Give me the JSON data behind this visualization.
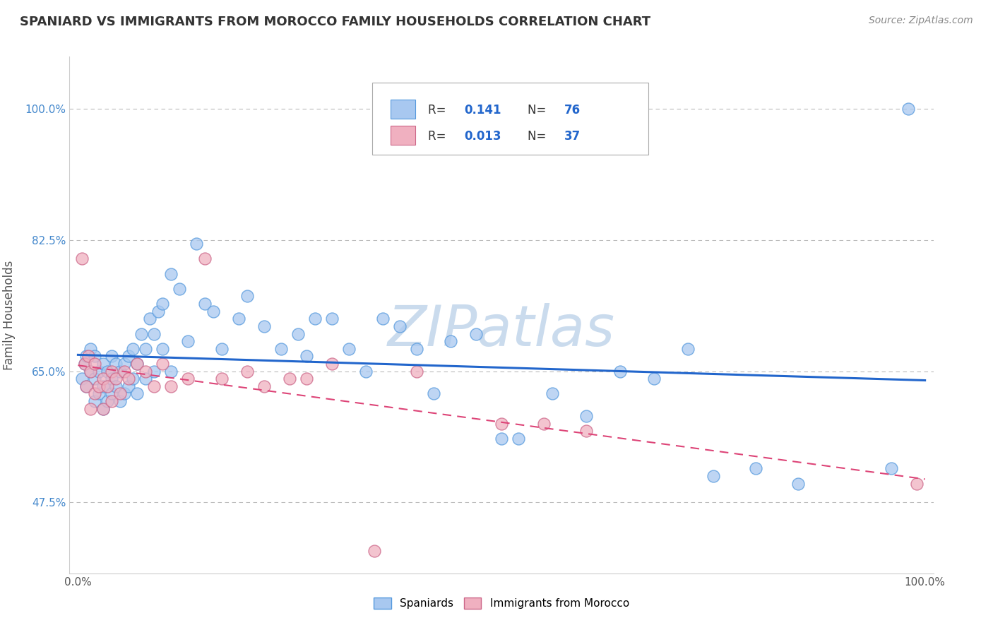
{
  "title": "SPANIARD VS IMMIGRANTS FROM MOROCCO FAMILY HOUSEHOLDS CORRELATION CHART",
  "source": "Source: ZipAtlas.com",
  "ylabel": "Family Households",
  "xlim": [
    -0.01,
    1.01
  ],
  "ylim": [
    0.38,
    1.07
  ],
  "yticks": [
    0.475,
    0.65,
    0.825,
    1.0
  ],
  "ytick_labels": [
    "47.5%",
    "65.0%",
    "82.5%",
    "100.0%"
  ],
  "xtick_labels": [
    "0.0%",
    "100.0%"
  ],
  "color_blue_fill": "#A8C8F0",
  "color_blue_edge": "#5599DD",
  "color_pink_fill": "#F0B0C0",
  "color_pink_edge": "#CC6688",
  "trendline_blue": "#2266CC",
  "trendline_pink": "#DD4477",
  "background": "#FFFFFF",
  "grid_color": "#BBBBBB",
  "watermark": "ZIPatlas",
  "watermark_color": "#C5D8EC",
  "r1_val": "0.141",
  "n1_val": "76",
  "r2_val": "0.013",
  "n2_val": "37",
  "spaniards_x": [
    0.005,
    0.008,
    0.01,
    0.01,
    0.015,
    0.015,
    0.02,
    0.02,
    0.02,
    0.025,
    0.025,
    0.03,
    0.03,
    0.03,
    0.035,
    0.035,
    0.04,
    0.04,
    0.04,
    0.045,
    0.045,
    0.05,
    0.05,
    0.055,
    0.055,
    0.06,
    0.06,
    0.065,
    0.065,
    0.07,
    0.07,
    0.075,
    0.08,
    0.08,
    0.085,
    0.09,
    0.09,
    0.095,
    0.1,
    0.1,
    0.11,
    0.11,
    0.12,
    0.13,
    0.14,
    0.15,
    0.16,
    0.17,
    0.19,
    0.2,
    0.22,
    0.24,
    0.26,
    0.27,
    0.28,
    0.3,
    0.32,
    0.34,
    0.36,
    0.38,
    0.4,
    0.42,
    0.44,
    0.47,
    0.5,
    0.52,
    0.56,
    0.6,
    0.64,
    0.68,
    0.72,
    0.75,
    0.8,
    0.85,
    0.96,
    0.98
  ],
  "spaniards_y": [
    0.64,
    0.66,
    0.63,
    0.67,
    0.65,
    0.68,
    0.61,
    0.64,
    0.67,
    0.62,
    0.65,
    0.6,
    0.63,
    0.66,
    0.61,
    0.65,
    0.62,
    0.64,
    0.67,
    0.63,
    0.66,
    0.61,
    0.65,
    0.62,
    0.66,
    0.63,
    0.67,
    0.64,
    0.68,
    0.62,
    0.66,
    0.7,
    0.64,
    0.68,
    0.72,
    0.65,
    0.7,
    0.73,
    0.68,
    0.74,
    0.78,
    0.65,
    0.76,
    0.69,
    0.82,
    0.74,
    0.73,
    0.68,
    0.72,
    0.75,
    0.71,
    0.68,
    0.7,
    0.67,
    0.72,
    0.72,
    0.68,
    0.65,
    0.72,
    0.71,
    0.68,
    0.62,
    0.69,
    0.7,
    0.56,
    0.56,
    0.62,
    0.59,
    0.65,
    0.64,
    0.68,
    0.51,
    0.52,
    0.5,
    0.52,
    1.0
  ],
  "morocco_x": [
    0.005,
    0.008,
    0.01,
    0.012,
    0.015,
    0.015,
    0.02,
    0.02,
    0.025,
    0.03,
    0.03,
    0.035,
    0.04,
    0.04,
    0.045,
    0.05,
    0.055,
    0.06,
    0.07,
    0.08,
    0.09,
    0.1,
    0.11,
    0.13,
    0.15,
    0.17,
    0.2,
    0.22,
    0.25,
    0.27,
    0.3,
    0.35,
    0.4,
    0.5,
    0.55,
    0.6,
    0.99
  ],
  "morocco_y": [
    0.8,
    0.66,
    0.63,
    0.67,
    0.6,
    0.65,
    0.62,
    0.66,
    0.63,
    0.6,
    0.64,
    0.63,
    0.61,
    0.65,
    0.64,
    0.62,
    0.65,
    0.64,
    0.66,
    0.65,
    0.63,
    0.66,
    0.63,
    0.64,
    0.8,
    0.64,
    0.65,
    0.63,
    0.64,
    0.64,
    0.66,
    0.41,
    0.65,
    0.58,
    0.58,
    0.57,
    0.5
  ]
}
